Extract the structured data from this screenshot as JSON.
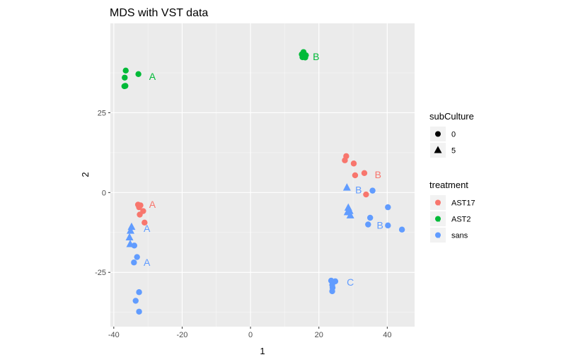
{
  "chart_data": {
    "type": "scatter",
    "title": "MDS with VST data",
    "xlabel": "1",
    "ylabel": "2",
    "xlim": [
      -41,
      48
    ],
    "ylim": [
      -42,
      53
    ],
    "xticks": [
      -40,
      -20,
      0,
      20,
      40
    ],
    "yticks": [
      -25,
      0,
      25
    ],
    "grid": true,
    "colors": {
      "AST17": "#F8766D",
      "AST2": "#00BA38",
      "sans": "#619CFF"
    },
    "legends": {
      "shape": {
        "title": "subCulture",
        "entries": [
          {
            "label": "0",
            "shape": "circle"
          },
          {
            "label": "5",
            "shape": "triangle"
          }
        ]
      },
      "color": {
        "title": "treatment",
        "entries": [
          "AST17",
          "AST2",
          "sans"
        ]
      }
    },
    "points": [
      {
        "x": -36.5,
        "y": 38.2,
        "treatment": "AST2",
        "subCulture": "0"
      },
      {
        "x": -36.8,
        "y": 36.0,
        "treatment": "AST2",
        "subCulture": "0"
      },
      {
        "x": -36.9,
        "y": 33.3,
        "treatment": "AST2",
        "subCulture": "0"
      },
      {
        "x": -36.6,
        "y": 33.4,
        "treatment": "AST2",
        "subCulture": "0"
      },
      {
        "x": -32.8,
        "y": 37.1,
        "treatment": "AST2",
        "subCulture": "0"
      },
      {
        "x": 15.0,
        "y": 43.3,
        "treatment": "AST2",
        "subCulture": "0"
      },
      {
        "x": 15.5,
        "y": 44.0,
        "treatment": "AST2",
        "subCulture": "0"
      },
      {
        "x": 16.2,
        "y": 43.0,
        "treatment": "AST2",
        "subCulture": "0"
      },
      {
        "x": 15.2,
        "y": 42.4,
        "treatment": "AST2",
        "subCulture": "0"
      },
      {
        "x": 16.0,
        "y": 42.3,
        "treatment": "AST2",
        "subCulture": "0"
      },
      {
        "x": -32.9,
        "y": -3.8,
        "treatment": "AST17",
        "subCulture": "0"
      },
      {
        "x": -32.2,
        "y": -4.0,
        "treatment": "AST17",
        "subCulture": "0"
      },
      {
        "x": -32.6,
        "y": -4.6,
        "treatment": "AST17",
        "subCulture": "0"
      },
      {
        "x": -31.4,
        "y": -5.8,
        "treatment": "AST17",
        "subCulture": "0"
      },
      {
        "x": -32.4,
        "y": -6.9,
        "treatment": "AST17",
        "subCulture": "0"
      },
      {
        "x": -31.0,
        "y": -9.4,
        "treatment": "AST17",
        "subCulture": "0"
      },
      {
        "x": 28.0,
        "y": 11.4,
        "treatment": "AST17",
        "subCulture": "0"
      },
      {
        "x": 27.6,
        "y": 10.1,
        "treatment": "AST17",
        "subCulture": "0"
      },
      {
        "x": 30.2,
        "y": 9.1,
        "treatment": "AST17",
        "subCulture": "0"
      },
      {
        "x": 33.3,
        "y": 6.1,
        "treatment": "AST17",
        "subCulture": "0"
      },
      {
        "x": 30.6,
        "y": 5.4,
        "treatment": "AST17",
        "subCulture": "0"
      },
      {
        "x": 33.8,
        "y": -0.6,
        "treatment": "AST17",
        "subCulture": "0"
      },
      {
        "x": -34.8,
        "y": -10.6,
        "treatment": "sans",
        "subCulture": "5"
      },
      {
        "x": -35.1,
        "y": -11.8,
        "treatment": "sans",
        "subCulture": "5"
      },
      {
        "x": -35.4,
        "y": -13.9,
        "treatment": "sans",
        "subCulture": "5"
      },
      {
        "x": -35.2,
        "y": -16.0,
        "treatment": "sans",
        "subCulture": "5"
      },
      {
        "x": -34.0,
        "y": -16.6,
        "treatment": "sans",
        "subCulture": "0"
      },
      {
        "x": -33.2,
        "y": -20.2,
        "treatment": "sans",
        "subCulture": "0"
      },
      {
        "x": -34.1,
        "y": -21.9,
        "treatment": "sans",
        "subCulture": "0"
      },
      {
        "x": -32.6,
        "y": -31.2,
        "treatment": "sans",
        "subCulture": "0"
      },
      {
        "x": -33.6,
        "y": -33.9,
        "treatment": "sans",
        "subCulture": "0"
      },
      {
        "x": -32.6,
        "y": -37.3,
        "treatment": "sans",
        "subCulture": "0"
      },
      {
        "x": 28.2,
        "y": 1.7,
        "treatment": "sans",
        "subCulture": "5"
      },
      {
        "x": 35.7,
        "y": 0.6,
        "treatment": "sans",
        "subCulture": "0"
      },
      {
        "x": 28.6,
        "y": -4.6,
        "treatment": "sans",
        "subCulture": "5"
      },
      {
        "x": 29.0,
        "y": -5.6,
        "treatment": "sans",
        "subCulture": "5"
      },
      {
        "x": 28.4,
        "y": -6.0,
        "treatment": "sans",
        "subCulture": "5"
      },
      {
        "x": 29.2,
        "y": -7.0,
        "treatment": "sans",
        "subCulture": "5"
      },
      {
        "x": 40.2,
        "y": -4.6,
        "treatment": "sans",
        "subCulture": "0"
      },
      {
        "x": 35.0,
        "y": -7.9,
        "treatment": "sans",
        "subCulture": "0"
      },
      {
        "x": 34.4,
        "y": -10.0,
        "treatment": "sans",
        "subCulture": "0"
      },
      {
        "x": 40.2,
        "y": -10.3,
        "treatment": "sans",
        "subCulture": "0"
      },
      {
        "x": 44.3,
        "y": -11.6,
        "treatment": "sans",
        "subCulture": "0"
      },
      {
        "x": 23.6,
        "y": -27.6,
        "treatment": "sans",
        "subCulture": "0"
      },
      {
        "x": 24.1,
        "y": -28.0,
        "treatment": "sans",
        "subCulture": "0"
      },
      {
        "x": 24.8,
        "y": -27.8,
        "treatment": "sans",
        "subCulture": "0"
      },
      {
        "x": 23.9,
        "y": -28.9,
        "treatment": "sans",
        "subCulture": "0"
      },
      {
        "x": 24.0,
        "y": -29.8,
        "treatment": "sans",
        "subCulture": "0"
      },
      {
        "x": 23.9,
        "y": -30.9,
        "treatment": "sans",
        "subCulture": "0"
      }
    ],
    "annotations": [
      {
        "text": "A",
        "x": -28.7,
        "y": 36.4,
        "treatment": "AST2"
      },
      {
        "text": "B",
        "x": 19.2,
        "y": 42.6,
        "treatment": "AST2"
      },
      {
        "text": "A",
        "x": -28.7,
        "y": -3.7,
        "treatment": "AST17"
      },
      {
        "x": 37.3,
        "y": 5.6,
        "text": "B",
        "treatment": "AST17"
      },
      {
        "text": "A",
        "x": -30.3,
        "y": -11.2,
        "treatment": "sans"
      },
      {
        "text": "A",
        "x": -30.3,
        "y": -21.8,
        "treatment": "sans"
      },
      {
        "text": "B",
        "x": 31.6,
        "y": 0.9,
        "treatment": "sans"
      },
      {
        "text": "B",
        "x": 37.9,
        "y": -10.2,
        "treatment": "sans"
      },
      {
        "text": "C",
        "x": 29.2,
        "y": -28.1,
        "treatment": "sans"
      }
    ]
  }
}
